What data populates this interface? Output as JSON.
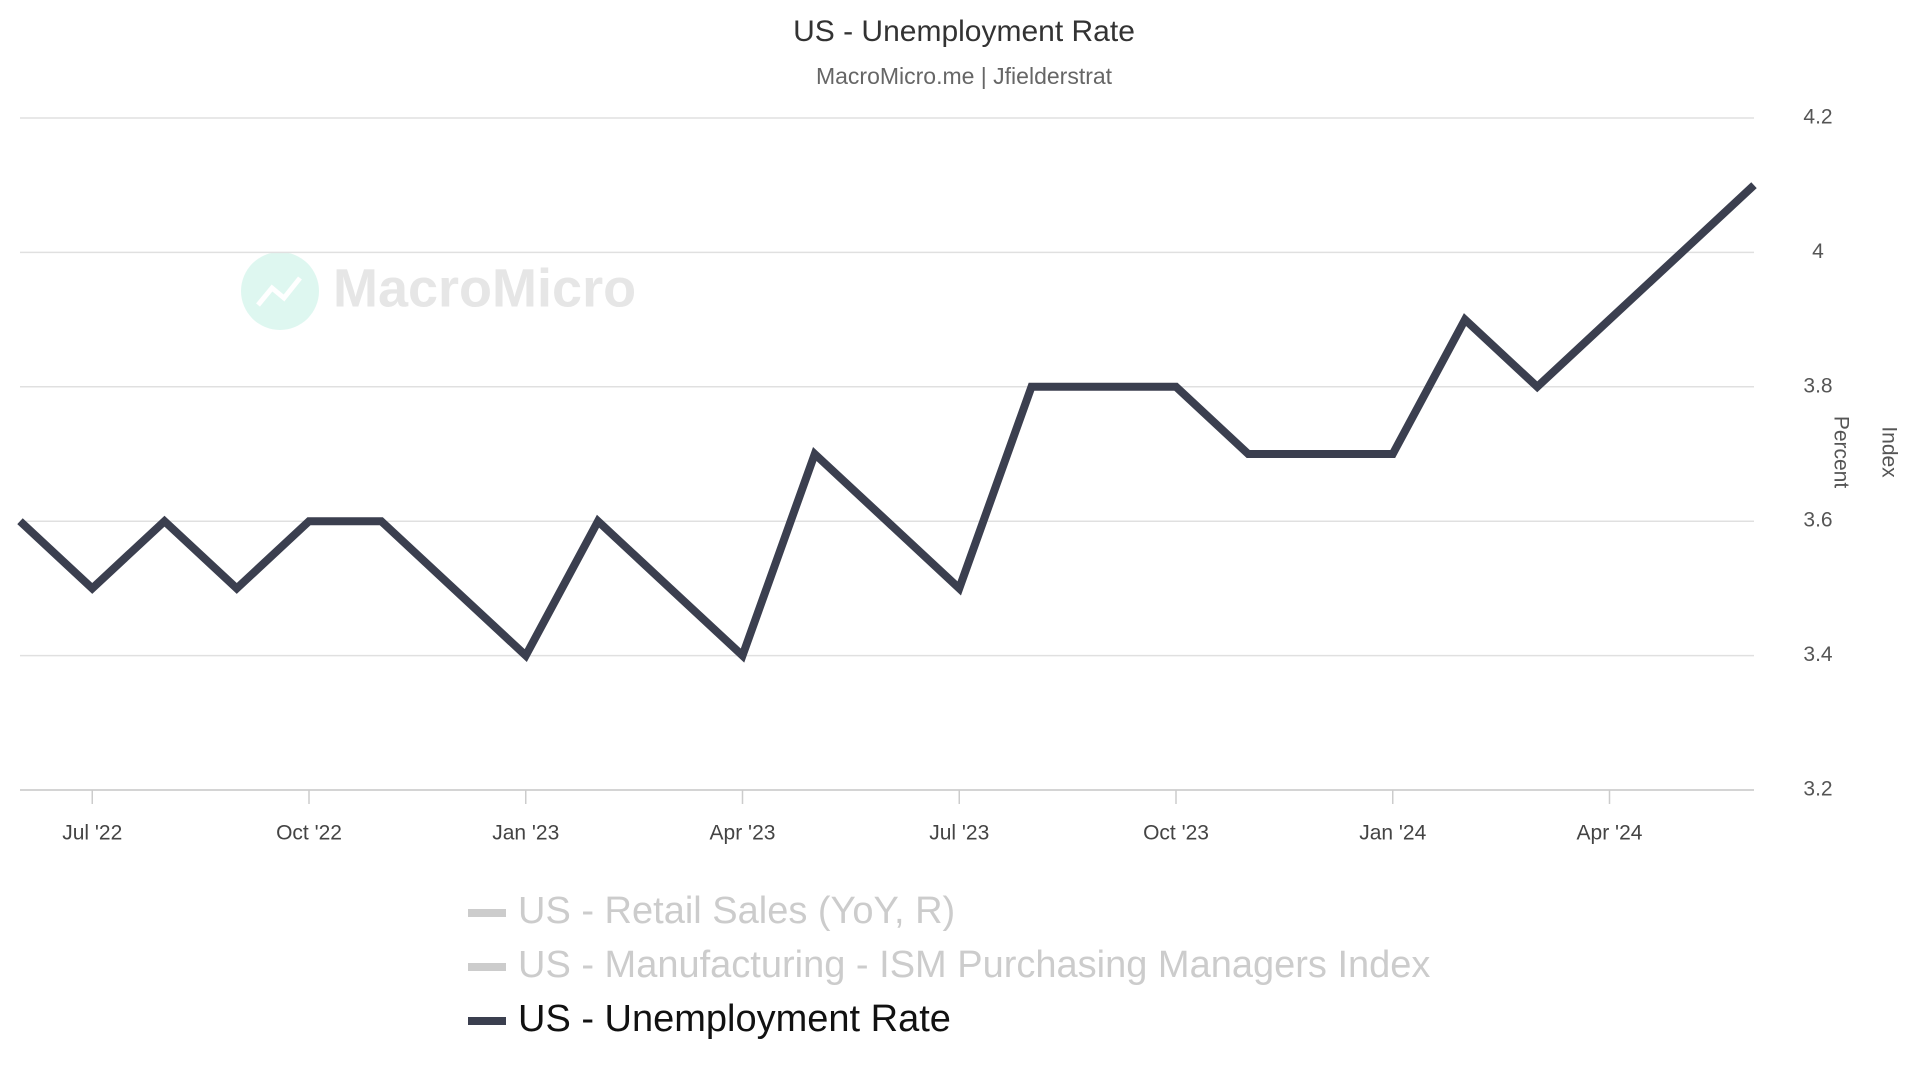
{
  "chart_data": {
    "type": "line",
    "title": "US - Unemployment Rate",
    "subtitle": "MacroMicro.me | Jfielderstrat",
    "watermark": "MacroMicro",
    "y_label": "Percent",
    "y2_label": "Index",
    "x": [
      "2022-06",
      "2022-07",
      "2022-08",
      "2022-09",
      "2022-10",
      "2022-11",
      "2022-12",
      "2023-01",
      "2023-02",
      "2023-03",
      "2023-04",
      "2023-05",
      "2023-06",
      "2023-07",
      "2023-08",
      "2023-09",
      "2023-10",
      "2023-11",
      "2023-12",
      "2024-01",
      "2024-02",
      "2024-03",
      "2024-04",
      "2024-05",
      "2024-06"
    ],
    "series": [
      {
        "name": "US - Retail Sales (YoY, R)",
        "color": "#cccccc",
        "visible": false
      },
      {
        "name": "US - Manufacturing - ISM Purchasing Managers Index",
        "color": "#cccccc",
        "visible": false
      },
      {
        "name": "US - Unemployment Rate",
        "color": "#3b3f4f",
        "visible": true,
        "values": [
          3.6,
          3.5,
          3.6,
          3.5,
          3.6,
          3.6,
          3.5,
          3.4,
          3.6,
          3.5,
          3.4,
          3.7,
          3.6,
          3.5,
          3.8,
          3.8,
          3.8,
          3.7,
          3.7,
          3.7,
          3.9,
          3.8,
          3.9,
          4.0,
          4.1
        ]
      }
    ],
    "xlim": [
      "2022-06",
      "2024-06"
    ],
    "xticks": [
      {
        "value": "2022-07",
        "label": "Jul '22"
      },
      {
        "value": "2022-10",
        "label": "Oct '22"
      },
      {
        "value": "2023-01",
        "label": "Jan '23"
      },
      {
        "value": "2023-04",
        "label": "Apr '23"
      },
      {
        "value": "2023-07",
        "label": "Jul '23"
      },
      {
        "value": "2023-10",
        "label": "Oct '23"
      },
      {
        "value": "2024-01",
        "label": "Jan '24"
      },
      {
        "value": "2024-04",
        "label": "Apr '24"
      }
    ],
    "ylim": [
      3.2,
      4.2
    ],
    "yticks": [
      3.2,
      3.4,
      3.6,
      3.8,
      4,
      4.2
    ],
    "grid": true
  }
}
